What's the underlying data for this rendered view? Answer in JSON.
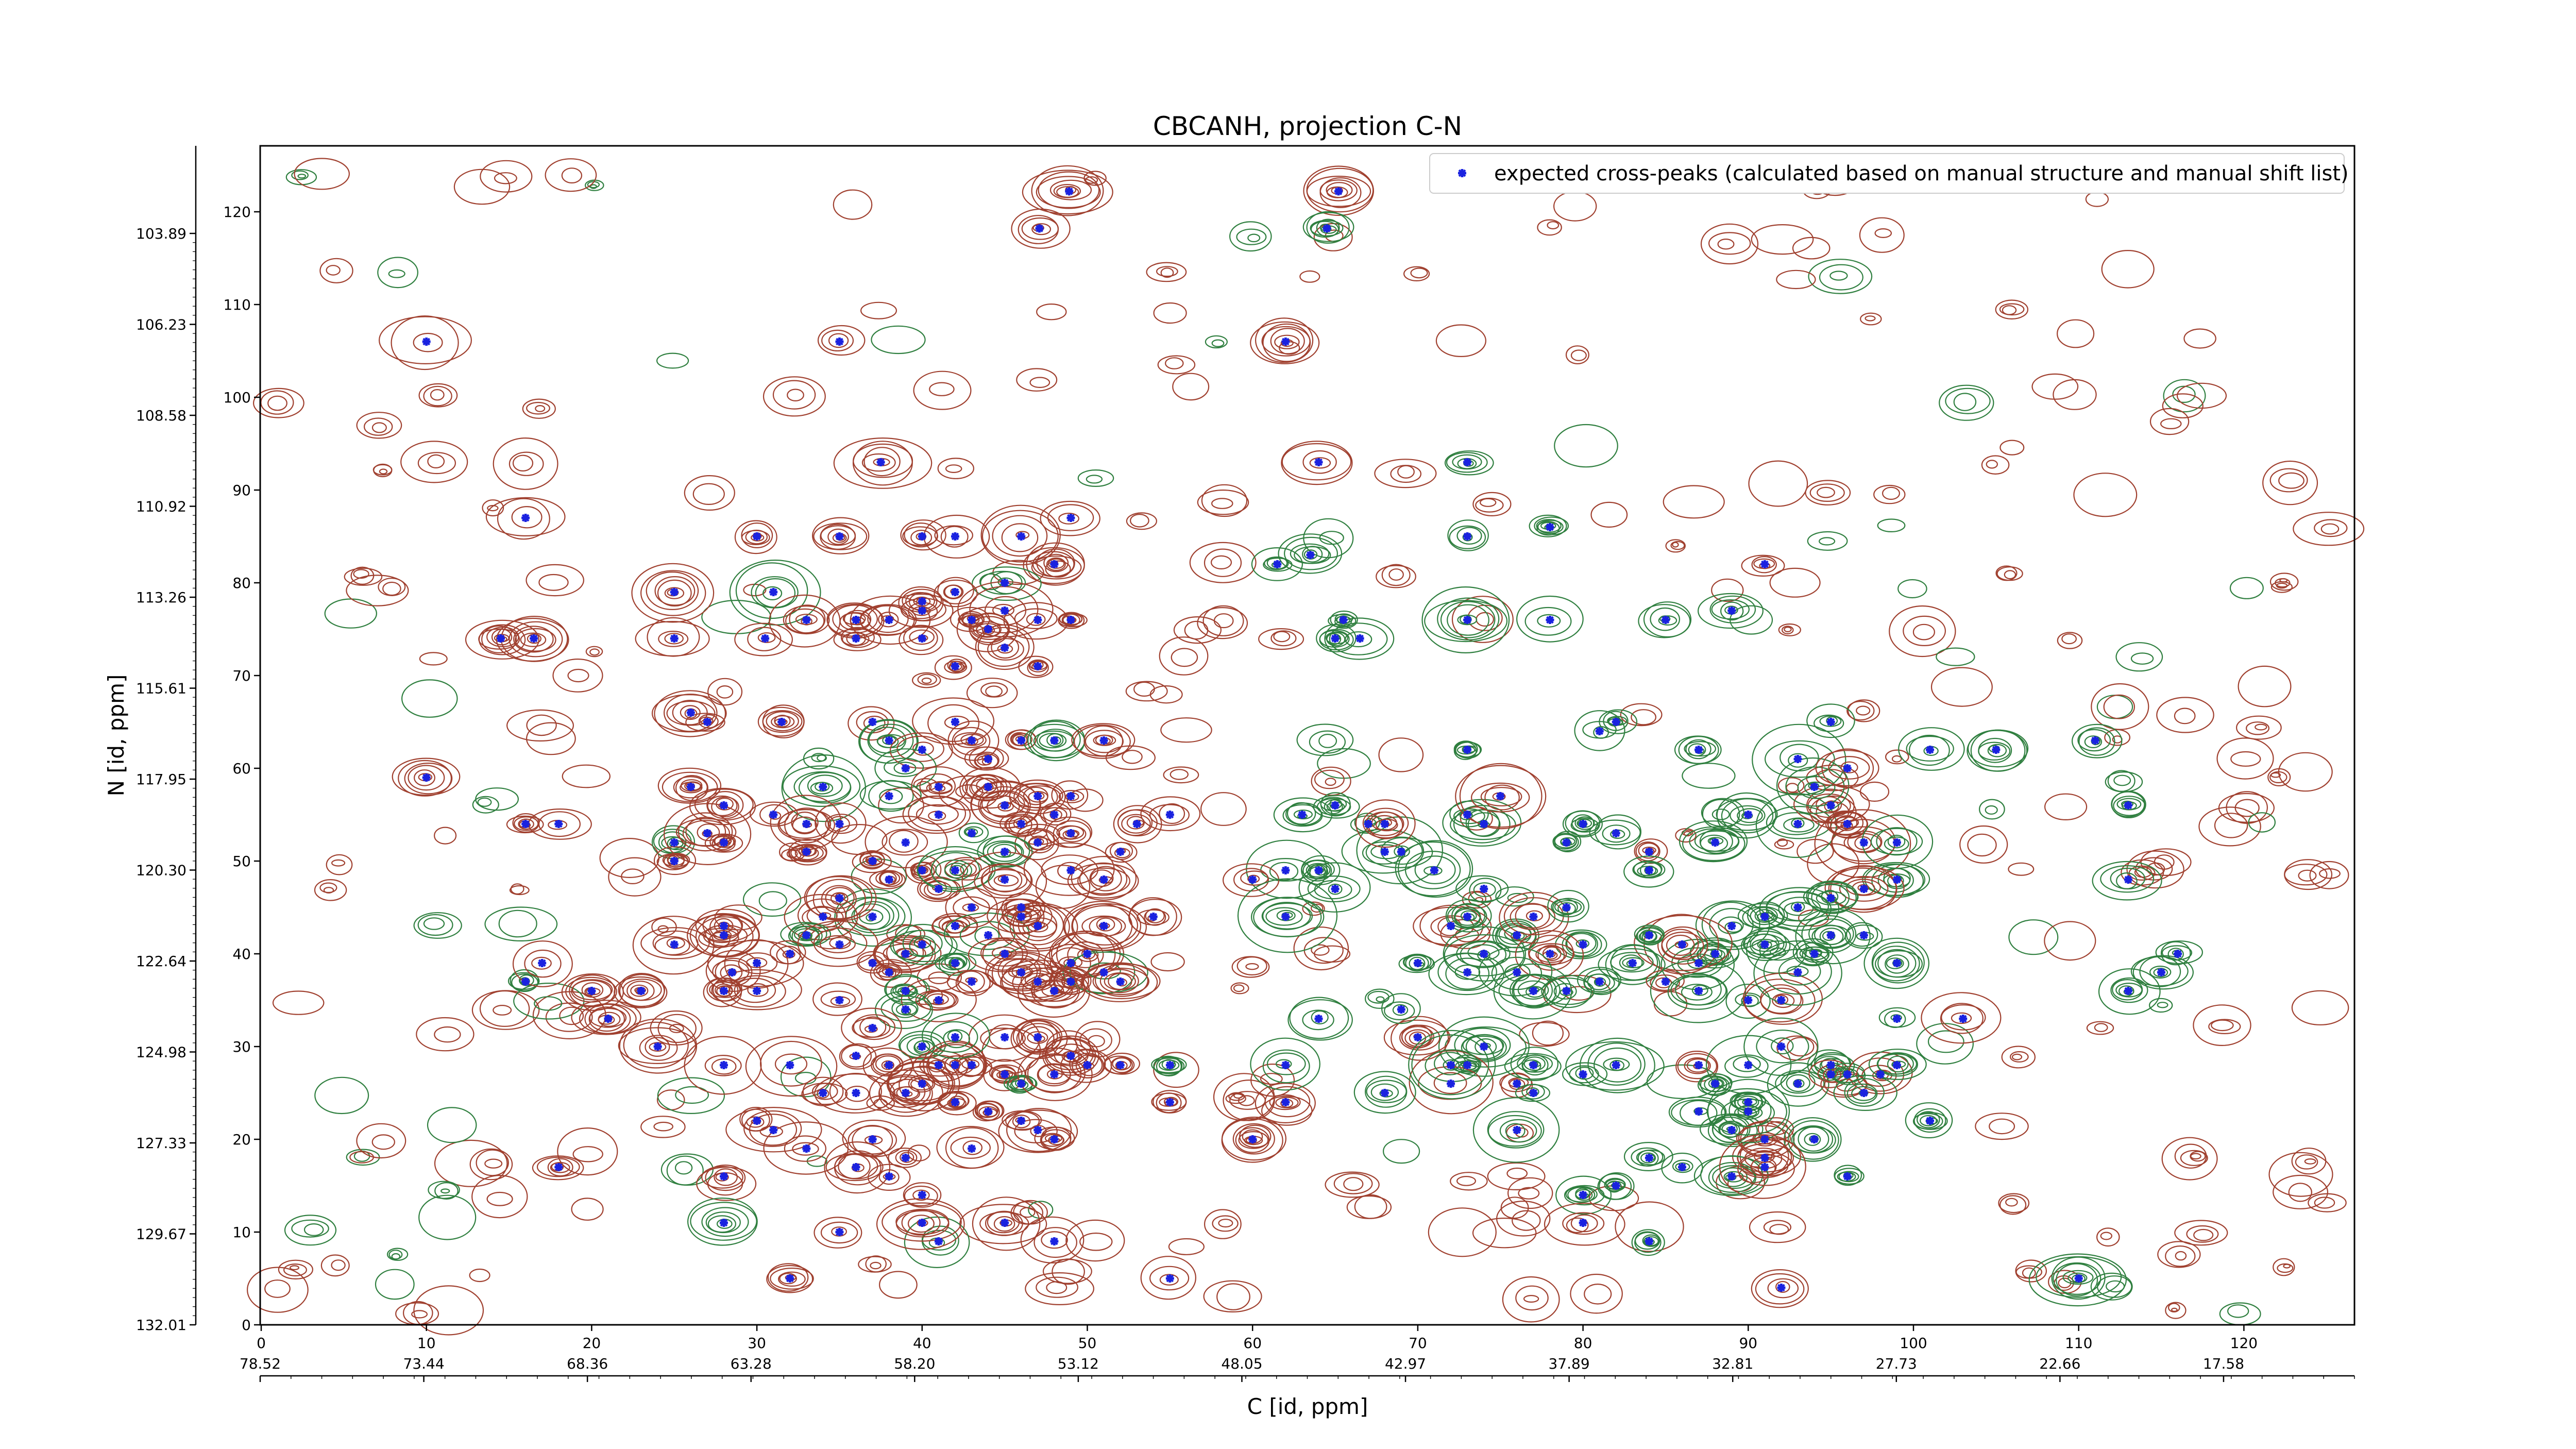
{
  "chart_data": {
    "type": "scatter",
    "title": "CBCANH, projection C-N",
    "xlabel": "C [id, ppm]",
    "ylabel": "N [id, ppm]",
    "xlim": [
      0,
      127
    ],
    "ylim": [
      0,
      127
    ],
    "x_index_ticks": [
      "0",
      "10",
      "20",
      "30",
      "40",
      "50",
      "60",
      "70",
      "80",
      "90",
      "100",
      "110",
      "120"
    ],
    "y_index_ticks": [
      "0",
      "10",
      "20",
      "30",
      "40",
      "50",
      "60",
      "70",
      "80",
      "90",
      "100",
      "110",
      "120"
    ],
    "x_ppm_ticks": [
      "78.52",
      "73.44",
      "68.36",
      "63.28",
      "58.20",
      "53.12",
      "48.05",
      "42.97",
      "37.89",
      "32.81",
      "27.73",
      "22.66",
      "17.58"
    ],
    "y_ppm_ticks": [
      "132.01",
      "129.67",
      "127.33",
      "124.98",
      "122.64",
      "120.30",
      "117.95",
      "115.61",
      "113.26",
      "110.92",
      "108.58",
      "106.23",
      "103.89"
    ],
    "legend": {
      "label": "expected cross-peaks (calculated based on manual structure and manual shift list)",
      "position": "upper-right"
    },
    "colors": {
      "positive_contours": "#a0402f",
      "negative_contours": "#2f7f3f",
      "peak_marker": "#1a22e0"
    },
    "series": [
      {
        "name": "expected cross-peaks (calculated based on manual structure and manual shift list)",
        "points": [
          [
            48.9,
            122.2
          ],
          [
            47.1,
            118.2
          ],
          [
            65.2,
            122.2
          ],
          [
            64.5,
            118.2
          ],
          [
            10,
            106
          ],
          [
            35,
            106
          ],
          [
            62,
            106
          ],
          [
            37.5,
            93
          ],
          [
            64,
            93
          ],
          [
            73,
            93
          ],
          [
            16,
            87
          ],
          [
            30,
            85
          ],
          [
            35,
            85
          ],
          [
            40,
            85
          ],
          [
            42,
            85
          ],
          [
            46,
            85
          ],
          [
            49,
            87
          ],
          [
            48,
            82
          ],
          [
            61.5,
            82
          ],
          [
            63.5,
            83
          ],
          [
            73,
            85
          ],
          [
            78,
            86
          ],
          [
            91,
            82
          ],
          [
            25,
            79
          ],
          [
            31,
            79
          ],
          [
            45,
            80
          ],
          [
            42,
            79
          ],
          [
            40,
            78
          ],
          [
            33,
            76
          ],
          [
            36,
            76
          ],
          [
            38,
            76
          ],
          [
            40,
            77
          ],
          [
            43,
            76
          ],
          [
            44,
            75
          ],
          [
            45,
            77
          ],
          [
            47,
            76
          ],
          [
            49,
            76
          ],
          [
            45,
            73
          ],
          [
            36,
            74
          ],
          [
            25,
            74
          ],
          [
            16.5,
            74
          ],
          [
            14.5,
            74
          ],
          [
            30.5,
            74
          ],
          [
            65.5,
            76
          ],
          [
            66.5,
            74
          ],
          [
            65,
            74
          ],
          [
            73,
            76
          ],
          [
            78,
            76
          ],
          [
            89,
            77
          ],
          [
            85,
            76
          ],
          [
            40,
            74
          ],
          [
            42,
            71
          ],
          [
            47,
            71
          ],
          [
            26,
            66
          ],
          [
            27,
            65
          ],
          [
            31.5,
            65
          ],
          [
            37,
            65
          ],
          [
            38,
            63
          ],
          [
            42,
            65
          ],
          [
            43,
            63
          ],
          [
            46,
            63
          ],
          [
            48,
            63
          ],
          [
            51,
            63
          ],
          [
            44,
            61
          ],
          [
            40,
            62
          ],
          [
            39,
            60
          ],
          [
            38,
            57
          ],
          [
            41,
            58
          ],
          [
            44,
            58
          ],
          [
            45,
            56
          ],
          [
            47,
            57
          ],
          [
            48,
            55
          ],
          [
            49,
            57
          ],
          [
            46,
            54
          ],
          [
            47,
            52
          ],
          [
            45,
            51
          ],
          [
            43,
            53
          ],
          [
            41,
            55
          ],
          [
            39,
            52
          ],
          [
            34,
            58
          ],
          [
            31,
            55
          ],
          [
            28,
            56
          ],
          [
            26,
            58
          ],
          [
            10,
            59
          ],
          [
            16,
            54
          ],
          [
            18,
            54
          ],
          [
            25,
            52
          ],
          [
            25,
            50
          ],
          [
            28,
            52
          ],
          [
            33,
            54
          ],
          [
            33,
            51
          ],
          [
            35,
            54
          ],
          [
            37,
            50
          ],
          [
            38,
            48
          ],
          [
            40,
            49
          ],
          [
            41,
            47
          ],
          [
            42,
            49
          ],
          [
            45,
            48
          ],
          [
            46,
            45
          ],
          [
            49,
            49
          ],
          [
            51,
            48
          ],
          [
            52,
            51
          ],
          [
            53,
            54
          ],
          [
            49,
            53
          ],
          [
            55,
            55
          ],
          [
            63,
            55
          ],
          [
            65,
            56
          ],
          [
            67,
            54
          ],
          [
            68,
            51
          ],
          [
            64,
            49
          ],
          [
            62,
            49
          ],
          [
            65,
            47
          ],
          [
            60,
            48
          ],
          [
            62,
            44
          ],
          [
            54,
            44
          ],
          [
            37,
            44
          ],
          [
            35,
            46
          ],
          [
            34,
            44
          ],
          [
            33,
            42
          ],
          [
            32,
            40
          ],
          [
            30,
            39
          ],
          [
            28,
            43
          ],
          [
            25,
            41
          ],
          [
            28,
            42
          ],
          [
            28.5,
            38
          ],
          [
            28,
            36
          ],
          [
            23,
            36
          ],
          [
            16,
            37
          ],
          [
            17,
            39
          ],
          [
            30,
            36
          ],
          [
            35,
            41
          ],
          [
            37,
            39
          ],
          [
            38,
            38
          ],
          [
            39,
            36
          ],
          [
            39,
            40
          ],
          [
            40,
            41
          ],
          [
            42,
            39
          ],
          [
            42,
            43
          ],
          [
            43,
            45
          ],
          [
            44,
            42
          ],
          [
            45,
            40
          ],
          [
            46,
            38
          ],
          [
            47,
            37
          ],
          [
            48,
            36
          ],
          [
            49,
            39
          ],
          [
            50,
            40
          ],
          [
            51,
            38
          ],
          [
            52,
            37
          ],
          [
            51,
            43
          ],
          [
            47,
            43
          ],
          [
            46,
            44
          ],
          [
            43,
            37
          ],
          [
            41,
            35
          ],
          [
            39,
            34
          ],
          [
            37,
            32
          ],
          [
            36,
            29
          ],
          [
            40,
            30
          ],
          [
            41,
            28
          ],
          [
            42,
            28
          ],
          [
            43,
            28
          ],
          [
            45,
            27
          ],
          [
            46,
            26
          ],
          [
            48,
            27
          ],
          [
            49,
            29
          ],
          [
            50,
            28
          ],
          [
            47,
            31
          ],
          [
            45,
            31
          ],
          [
            42,
            31
          ],
          [
            38,
            28
          ],
          [
            34,
            25
          ],
          [
            36,
            25
          ],
          [
            39,
            25
          ],
          [
            42,
            24
          ],
          [
            44,
            23
          ],
          [
            46,
            22
          ],
          [
            47,
            21
          ],
          [
            48,
            20
          ],
          [
            43,
            19
          ],
          [
            39,
            18
          ],
          [
            36,
            17
          ],
          [
            33,
            19
          ],
          [
            31,
            21
          ],
          [
            30,
            22
          ],
          [
            37,
            20
          ],
          [
            40,
            26
          ],
          [
            52,
            28
          ],
          [
            55,
            24
          ],
          [
            62,
            24
          ],
          [
            72,
            43
          ],
          [
            74,
            40
          ],
          [
            73,
            38
          ],
          [
            76,
            42
          ],
          [
            70,
            39
          ],
          [
            73,
            44
          ],
          [
            74,
            47
          ],
          [
            71,
            49
          ],
          [
            69,
            51
          ],
          [
            68,
            54
          ],
          [
            73,
            55
          ],
          [
            74,
            54
          ],
          [
            79,
            52
          ],
          [
            80,
            54
          ],
          [
            82,
            53
          ],
          [
            84,
            51
          ],
          [
            84,
            49
          ],
          [
            88,
            52
          ],
          [
            90,
            55
          ],
          [
            93,
            54
          ],
          [
            95,
            56
          ],
          [
            94,
            58
          ],
          [
            96,
            54
          ],
          [
            97,
            52
          ],
          [
            99,
            52
          ],
          [
            99,
            48
          ],
          [
            97,
            47
          ],
          [
            95,
            46
          ],
          [
            93,
            45
          ],
          [
            91,
            44
          ],
          [
            89,
            43
          ],
          [
            88,
            40
          ],
          [
            87,
            39
          ],
          [
            86,
            41
          ],
          [
            84,
            42
          ],
          [
            83,
            39
          ],
          [
            85,
            37
          ],
          [
            87,
            36
          ],
          [
            90,
            35
          ],
          [
            92,
            35
          ],
          [
            93,
            38
          ],
          [
            94,
            40
          ],
          [
            95,
            42
          ],
          [
            97,
            42
          ],
          [
            91,
            41
          ],
          [
            80,
            41
          ],
          [
            78,
            40
          ],
          [
            76,
            38
          ],
          [
            77,
            36
          ],
          [
            79,
            36
          ],
          [
            81,
            37
          ],
          [
            77,
            44
          ],
          [
            79,
            45
          ],
          [
            74,
            30
          ],
          [
            73,
            28
          ],
          [
            72,
            26
          ],
          [
            70,
            31
          ],
          [
            69,
            34
          ],
          [
            68,
            25
          ],
          [
            76,
            26
          ],
          [
            77,
            25
          ],
          [
            77,
            28
          ],
          [
            80,
            27
          ],
          [
            82,
            28
          ],
          [
            87,
            28
          ],
          [
            88,
            26
          ],
          [
            90,
            28
          ],
          [
            92,
            30
          ],
          [
            95,
            28
          ],
          [
            93,
            26
          ],
          [
            95,
            27
          ],
          [
            96,
            27
          ],
          [
            98,
            27
          ],
          [
            99,
            28
          ],
          [
            97,
            25
          ],
          [
            90,
            24
          ],
          [
            87,
            23
          ],
          [
            89,
            21
          ],
          [
            91,
            20
          ],
          [
            94,
            20
          ],
          [
            91,
            18
          ],
          [
            89,
            16
          ],
          [
            86,
            17
          ],
          [
            84,
            18
          ],
          [
            82,
            15
          ],
          [
            80,
            14
          ],
          [
            76,
            21
          ],
          [
            72,
            28
          ],
          [
            90,
            23
          ],
          [
            73,
            62
          ],
          [
            75,
            57
          ],
          [
            81,
            64
          ],
          [
            82,
            65
          ],
          [
            87,
            62
          ],
          [
            93,
            61
          ],
          [
            96,
            60
          ],
          [
            101,
            62
          ],
          [
            105,
            62
          ],
          [
            111,
            63
          ],
          [
            113,
            56
          ],
          [
            113,
            48
          ],
          [
            113,
            36
          ],
          [
            115,
            38
          ],
          [
            116,
            40
          ],
          [
            99,
            39
          ],
          [
            99,
            33
          ],
          [
            103,
            33
          ],
          [
            91,
            17
          ],
          [
            96,
            16
          ],
          [
            101,
            22
          ],
          [
            110,
            5
          ],
          [
            92,
            4
          ],
          [
            84,
            9
          ],
          [
            80,
            11
          ],
          [
            55,
            5
          ],
          [
            48,
            9
          ],
          [
            45,
            11
          ],
          [
            41,
            9
          ],
          [
            40,
            11
          ],
          [
            35,
            10
          ],
          [
            32,
            5
          ],
          [
            28,
            11
          ],
          [
            28,
            16
          ],
          [
            18,
            17
          ],
          [
            21,
            33
          ],
          [
            24,
            30
          ],
          [
            28,
            28
          ],
          [
            32,
            28
          ],
          [
            27,
            53
          ],
          [
            49,
            37
          ],
          [
            55,
            28
          ],
          [
            95,
            65
          ],
          [
            64,
            33
          ],
          [
            62,
            28
          ],
          [
            60,
            20
          ],
          [
            40,
            14
          ],
          [
            38,
            16
          ],
          [
            20,
            36
          ],
          [
            35,
            35
          ]
        ]
      }
    ]
  }
}
